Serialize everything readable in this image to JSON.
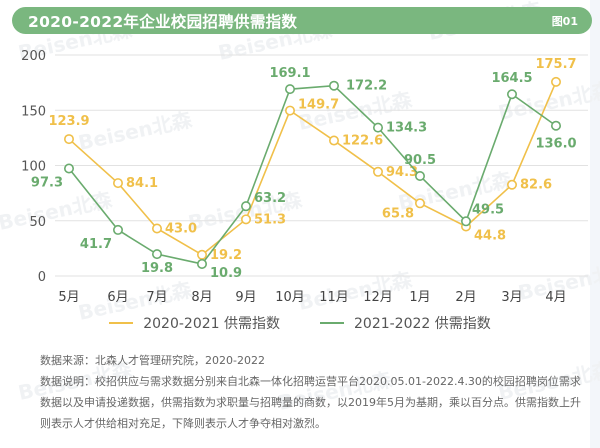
{
  "header": {
    "title": "2020-2022年企业校园招聘供需指数",
    "figure_label": "图01"
  },
  "colors": {
    "title_bar": "#7ab77f",
    "series_2020_2021": "#f0c04a",
    "series_2021_2022": "#6aab6e",
    "gridline": "#e2e2e2"
  },
  "watermark": "Beisen北森",
  "chart_data": {
    "type": "line",
    "title": "2020-2022年企业校园招聘供需指数",
    "xlabel": "",
    "ylabel": "",
    "categories": [
      "5月",
      "6月",
      "7月",
      "8月",
      "9月",
      "10月",
      "11月",
      "12月",
      "1月",
      "2月",
      "3月",
      "4月"
    ],
    "yticks": [
      "0",
      "50",
      "100",
      "150",
      "200"
    ],
    "ylim": [
      0,
      200
    ],
    "grid": true,
    "legend_position": "bottom",
    "series": [
      {
        "name": "2020-2021 供需指数",
        "color": "#f0c04a",
        "values": [
          123.9,
          84.1,
          43.0,
          19.2,
          51.3,
          149.7,
          122.6,
          94.3,
          65.8,
          44.8,
          82.6,
          175.7
        ],
        "labels": [
          "123.9",
          "84.1",
          "43.0",
          "19.2",
          "51.3",
          "149.7",
          "122.6",
          "94.3",
          "65.8",
          "44.8",
          "82.6",
          "175.7"
        ]
      },
      {
        "name": "2021-2022 供需指数",
        "color": "#6aab6e",
        "values": [
          97.3,
          41.7,
          19.8,
          10.9,
          63.2,
          169.1,
          172.2,
          134.3,
          90.5,
          49.5,
          164.5,
          136.0
        ],
        "labels": [
          "97.3",
          "41.7",
          "19.8",
          "10.9",
          "63.2",
          "169.1",
          "172.2",
          "134.3",
          "90.5",
          "49.5",
          "164.5",
          "136.0"
        ]
      }
    ]
  },
  "notes": {
    "source": "数据来源：北森人才管理研究院，2020-2022",
    "description": "数据说明：校招供应与需求数据分别来自北森一体化招聘运营平台2020.05.01-2022.4.30的校园招聘岗位需求数据以及申请投递数据，供需指数为求职量与招聘量的商数，以2019年5月为基期，乘以百分点。供需指数上升则表示人才供给相对充足，下降则表示人才争夺相对激烈。"
  }
}
